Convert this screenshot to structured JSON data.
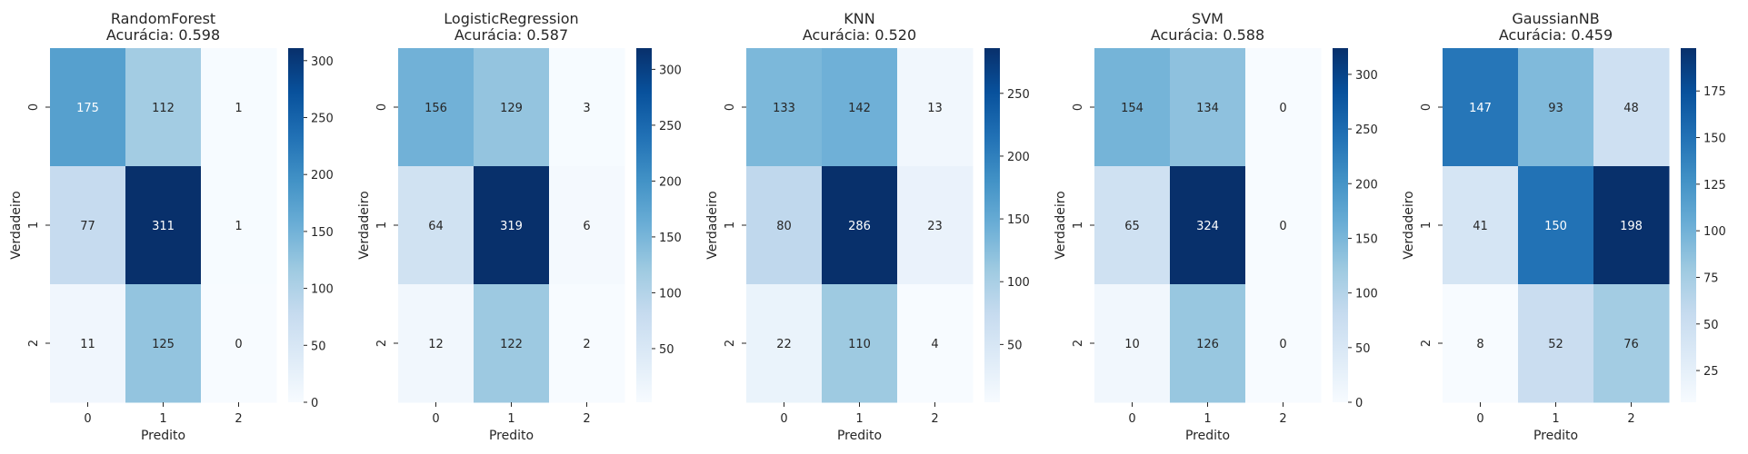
{
  "chart_data": [
    {
      "type": "heatmap",
      "title": "RandomForest",
      "subtitle": "Acurácia: 0.598",
      "xlabel": "Predito",
      "ylabel": "Verdadeiro",
      "x_ticks": [
        "0",
        "1",
        "2"
      ],
      "y_ticks": [
        "0",
        "1",
        "2"
      ],
      "values": [
        [
          175,
          112,
          1
        ],
        [
          77,
          311,
          1
        ],
        [
          11,
          125,
          0
        ]
      ],
      "vmin": 0,
      "vmax": 311,
      "colorbar_ticks": [
        0,
        50,
        100,
        150,
        200,
        250,
        300
      ],
      "colormap": "Blues"
    },
    {
      "type": "heatmap",
      "title": "LogisticRegression",
      "subtitle": "Acurácia: 0.587",
      "xlabel": "Predito",
      "ylabel": "Verdadeiro",
      "x_ticks": [
        "0",
        "1",
        "2"
      ],
      "y_ticks": [
        "0",
        "1",
        "2"
      ],
      "values": [
        [
          156,
          129,
          3
        ],
        [
          64,
          319,
          6
        ],
        [
          12,
          122,
          2
        ]
      ],
      "vmin": 2,
      "vmax": 319,
      "colorbar_ticks": [
        50,
        100,
        150,
        200,
        250,
        300
      ],
      "colormap": "Blues"
    },
    {
      "type": "heatmap",
      "title": "KNN",
      "subtitle": "Acurácia: 0.520",
      "xlabel": "Predito",
      "ylabel": "Verdadeiro",
      "x_ticks": [
        "0",
        "1",
        "2"
      ],
      "y_ticks": [
        "0",
        "1",
        "2"
      ],
      "values": [
        [
          133,
          142,
          13
        ],
        [
          80,
          286,
          23
        ],
        [
          22,
          110,
          4
        ]
      ],
      "vmin": 4,
      "vmax": 286,
      "colorbar_ticks": [
        50,
        100,
        150,
        200,
        250
      ],
      "colormap": "Blues"
    },
    {
      "type": "heatmap",
      "title": "SVM",
      "subtitle": "Acurácia: 0.588",
      "xlabel": "Predito",
      "ylabel": "Verdadeiro",
      "x_ticks": [
        "0",
        "1",
        "2"
      ],
      "y_ticks": [
        "0",
        "1",
        "2"
      ],
      "values": [
        [
          154,
          134,
          0
        ],
        [
          65,
          324,
          0
        ],
        [
          10,
          126,
          0
        ]
      ],
      "vmin": 0,
      "vmax": 324,
      "colorbar_ticks": [
        0,
        50,
        100,
        150,
        200,
        250,
        300
      ],
      "colormap": "Blues"
    },
    {
      "type": "heatmap",
      "title": "GaussianNB",
      "subtitle": "Acurácia: 0.459",
      "xlabel": "Predito",
      "ylabel": "Verdadeiro",
      "x_ticks": [
        "0",
        "1",
        "2"
      ],
      "y_ticks": [
        "0",
        "1",
        "2"
      ],
      "values": [
        [
          147,
          93,
          48
        ],
        [
          41,
          150,
          198
        ],
        [
          8,
          52,
          76
        ]
      ],
      "vmin": 8,
      "vmax": 198,
      "colorbar_ticks": [
        25,
        50,
        75,
        100,
        125,
        150,
        175
      ],
      "colormap": "Blues"
    }
  ],
  "colors": {
    "blues_scale": [
      "#f7fbff",
      "#deebf7",
      "#c6dbef",
      "#9ecae1",
      "#6baed6",
      "#4292c6",
      "#2171b5",
      "#08519c",
      "#08306b"
    ],
    "dark_text": "#262626",
    "light_text": "#ffffff"
  }
}
